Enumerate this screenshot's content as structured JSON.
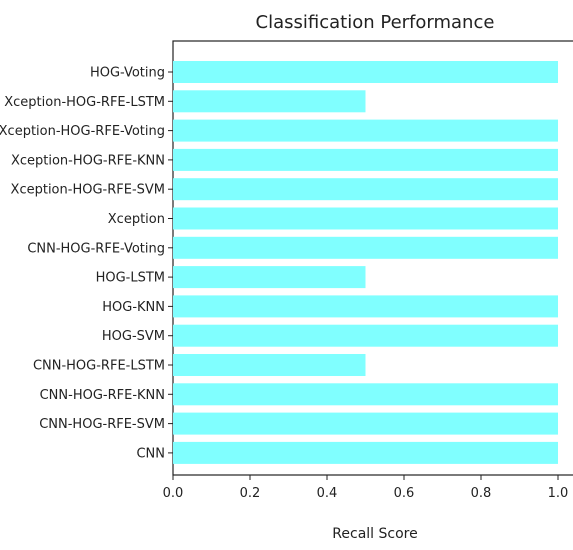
{
  "chart_data": {
    "type": "bar",
    "orientation": "horizontal",
    "title": "Classification Performance",
    "xlabel": "Recall Score",
    "ylabel": "",
    "xlim": [
      0.0,
      1.0
    ],
    "x_ticks": [
      "0.0",
      "0.2",
      "0.4",
      "0.6",
      "0.8",
      "1.0"
    ],
    "bar_color": "#80ffff",
    "grid": false,
    "categories": [
      "HOG-Voting",
      "Xception-HOG-RFE-LSTM",
      "Xception-HOG-RFE-Voting",
      "Xception-HOG-RFE-KNN",
      "Xception-HOG-RFE-SVM",
      "Xception",
      "CNN-HOG-RFE-Voting",
      "HOG-LSTM",
      "HOG-KNN",
      "HOG-SVM",
      "CNN-HOG-RFE-LSTM",
      "CNN-HOG-RFE-KNN",
      "CNN-HOG-RFE-SVM",
      "CNN"
    ],
    "values": [
      1.0,
      0.5,
      1.0,
      1.0,
      1.0,
      1.0,
      1.0,
      0.5,
      1.0,
      1.0,
      0.5,
      1.0,
      1.0,
      1.0
    ]
  }
}
